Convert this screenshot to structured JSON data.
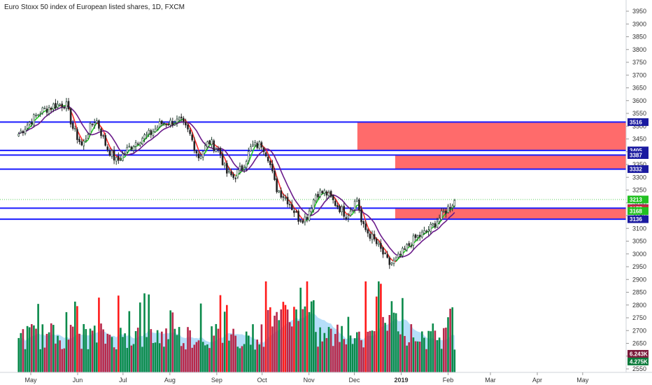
{
  "chart_data": {
    "type": "candlestick",
    "title": "Euro Stoxx 50 index of European listed shares, 1D, FXCM",
    "y_axis": {
      "range": [
        2530,
        3990
      ],
      "ticks": [
        3950,
        3900,
        3850,
        3800,
        3750,
        3700,
        3650,
        3600,
        3550,
        3500,
        3450,
        3400,
        3350,
        3300,
        3250,
        3200,
        3150,
        3100,
        3050,
        3000,
        2950,
        2900,
        2850,
        2800,
        2750,
        2700,
        2650,
        2600,
        2550
      ]
    },
    "x_axis": {
      "ticks": [
        {
          "label": "May",
          "bold": false
        },
        {
          "label": "Jun",
          "bold": false
        },
        {
          "label": "Jul",
          "bold": false
        },
        {
          "label": "Aug",
          "bold": false
        },
        {
          "label": "Sep",
          "bold": false
        },
        {
          "label": "Oct",
          "bold": false
        },
        {
          "label": "Nov",
          "bold": false
        },
        {
          "label": "Dec",
          "bold": false
        },
        {
          "label": "2019",
          "bold": true
        },
        {
          "label": "Feb",
          "bold": false
        },
        {
          "label": "Mar",
          "bold": false
        },
        {
          "label": "Apr",
          "bold": false
        },
        {
          "label": "May",
          "bold": false
        }
      ]
    },
    "close_path": [
      {
        "date": "2018-04-23",
        "close": 3470
      },
      {
        "date": "2018-05-01",
        "close": 3520
      },
      {
        "date": "2018-05-08",
        "close": 3560
      },
      {
        "date": "2018-05-16",
        "close": 3580
      },
      {
        "date": "2018-05-24",
        "close": 3590
      },
      {
        "date": "2018-05-29",
        "close": 3490
      },
      {
        "date": "2018-06-04",
        "close": 3420
      },
      {
        "date": "2018-06-08",
        "close": 3480
      },
      {
        "date": "2018-06-13",
        "close": 3530
      },
      {
        "date": "2018-06-20",
        "close": 3420
      },
      {
        "date": "2018-06-27",
        "close": 3360
      },
      {
        "date": "2018-07-04",
        "close": 3410
      },
      {
        "date": "2018-07-12",
        "close": 3450
      },
      {
        "date": "2018-07-19",
        "close": 3470
      },
      {
        "date": "2018-07-26",
        "close": 3510
      },
      {
        "date": "2018-08-01",
        "close": 3515
      },
      {
        "date": "2018-08-08",
        "close": 3520
      },
      {
        "date": "2018-08-14",
        "close": 3470
      },
      {
        "date": "2018-08-20",
        "close": 3380
      },
      {
        "date": "2018-08-27",
        "close": 3440
      },
      {
        "date": "2018-09-03",
        "close": 3400
      },
      {
        "date": "2018-09-07",
        "close": 3320
      },
      {
        "date": "2018-09-12",
        "close": 3300
      },
      {
        "date": "2018-09-18",
        "close": 3340
      },
      {
        "date": "2018-09-24",
        "close": 3420
      },
      {
        "date": "2018-10-01",
        "close": 3430
      },
      {
        "date": "2018-10-05",
        "close": 3380
      },
      {
        "date": "2018-10-10",
        "close": 3260
      },
      {
        "date": "2018-10-18",
        "close": 3210
      },
      {
        "date": "2018-10-25",
        "close": 3140
      },
      {
        "date": "2018-10-30",
        "close": 3140
      },
      {
        "date": "2018-11-06",
        "close": 3240
      },
      {
        "date": "2018-11-12",
        "close": 3240
      },
      {
        "date": "2018-11-18",
        "close": 3200
      },
      {
        "date": "2018-11-26",
        "close": 3150
      },
      {
        "date": "2018-12-03",
        "close": 3220
      },
      {
        "date": "2018-12-06",
        "close": 3110
      },
      {
        "date": "2018-12-12",
        "close": 3070
      },
      {
        "date": "2018-12-18",
        "close": 3020
      },
      {
        "date": "2018-12-24",
        "close": 2960
      },
      {
        "date": "2018-12-28",
        "close": 2970
      },
      {
        "date": "2019-01-04",
        "close": 3020
      },
      {
        "date": "2019-01-10",
        "close": 3060
      },
      {
        "date": "2019-01-16",
        "close": 3080
      },
      {
        "date": "2019-01-22",
        "close": 3110
      },
      {
        "date": "2019-01-29",
        "close": 3160
      },
      {
        "date": "2019-02-04",
        "close": 3200
      },
      {
        "date": "2019-02-06",
        "close": 3213
      }
    ],
    "horizontal_levels": [
      3516,
      3405,
      3387,
      3332,
      3179,
      3136
    ],
    "zones": [
      {
        "from": "2018-12-03",
        "to": "2019-05-31",
        "low": 3405,
        "high": 3516
      },
      {
        "from": "2018-12-28",
        "to": "2019-05-31",
        "low": 3332,
        "high": 3387
      },
      {
        "from": "2018-12-28",
        "to": "2019-05-31",
        "low": 3136,
        "high": 3179
      }
    ],
    "price_badges": [
      {
        "label": "3516",
        "value": 3516,
        "color": "#1a1aa0"
      },
      {
        "label": "3405",
        "value": 3405,
        "color": "#1a1aa0"
      },
      {
        "label": "3387",
        "value": 3387,
        "color": "#1a1aa0"
      },
      {
        "label": "3332",
        "value": 3332,
        "color": "#1a1aa0"
      },
      {
        "label": "3213",
        "value": 3213,
        "color": "#22c022"
      },
      {
        "label": "3179",
        "value": 3179,
        "color": "#6a1a4a"
      },
      {
        "label": "3177",
        "value": 3177,
        "color": "#cc2a44"
      },
      {
        "label": "3168",
        "value": 3168,
        "color": "#22c022"
      },
      {
        "label": "3136",
        "value": 3136,
        "color": "#1a1aa0"
      },
      {
        "label": "6.243K",
        "value": 2609,
        "color": "#7a1a3a"
      },
      {
        "label": "4.275K",
        "value": 2579,
        "color": "#0a7a3a"
      }
    ],
    "colors": {
      "level_line": "#1a1aff",
      "zone": "#ff6b6b",
      "up_volume": "#0a8a4a",
      "down_volume": "#b8284a",
      "volume_spike": "#ff1a1a",
      "volume_ma": "#a8d8f8",
      "ma_fast_up": "#22cc22",
      "ma_fast_down": "#ff2a2a",
      "ma_slow": "#6a1a8a"
    }
  }
}
